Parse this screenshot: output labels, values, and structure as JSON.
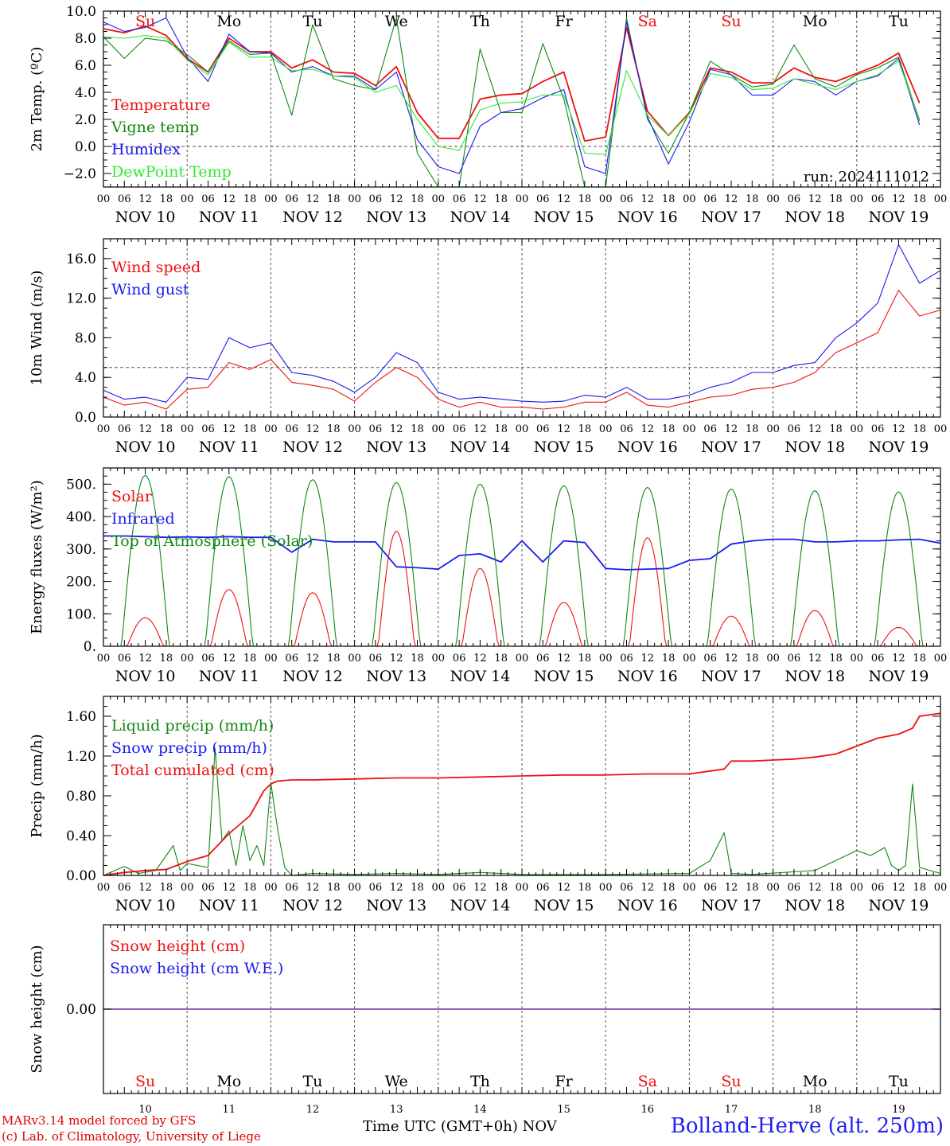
{
  "meta": {
    "run": "run: 2024111012",
    "credit_line1": "MARv3.14 model forced by GFS",
    "credit_line2": "(c) Lab. of Climatology, University of Liege",
    "xlabel": "Time UTC (GMT+0h)",
    "xunit": "NOV",
    "station": "Bolland-Herve (alt. 250m)"
  },
  "colors": {
    "red": "#ee1111",
    "green": "#118811",
    "blue": "#1a1af0",
    "lightgreen": "#33e833",
    "purple": "#7a2aa0",
    "sunday": "#ee1111"
  },
  "days": [
    "NOV 10",
    "NOV 11",
    "NOV 12",
    "NOV 13",
    "NOV 14",
    "NOV 15",
    "NOV 16",
    "NOV 17",
    "NOV 18",
    "NOV 19"
  ],
  "weekdays": [
    "Su",
    "Mo",
    "Tu",
    "We",
    "Th",
    "Fr",
    "Sa",
    "Su",
    "Mo",
    "Tu"
  ],
  "weekend_flags": [
    true,
    false,
    false,
    false,
    false,
    false,
    true,
    true,
    false,
    false
  ],
  "day_numbers": [
    "10",
    "11",
    "12",
    "13",
    "14",
    "15",
    "16",
    "17",
    "18",
    "19"
  ],
  "hour_ticks": [
    "00",
    "06",
    "12",
    "18"
  ],
  "chart_data": [
    {
      "type": "line",
      "ylabel": "2m Temp. (ºC)",
      "ylim": [
        -3,
        10
      ],
      "yticks": [
        -2,
        0,
        2,
        4,
        6,
        8,
        10
      ],
      "ytick_labels": [
        "−2.0",
        "0.0",
        "2.0",
        "4.0",
        "6.0",
        "8.0",
        "10.0"
      ],
      "ref_line": 0,
      "x_unit": "hours since NOV 10 00 UTC",
      "series": [
        {
          "name": "Temperature",
          "color": "red",
          "x": [
            0,
            6,
            12,
            18,
            24,
            30,
            36,
            42,
            48,
            54,
            60,
            66,
            72,
            78,
            84,
            90,
            96,
            102,
            108,
            114,
            120,
            126,
            132,
            138,
            144,
            150,
            156,
            162,
            168,
            174,
            180,
            186,
            192,
            198,
            204,
            210,
            216,
            222,
            228,
            234
          ],
          "y": [
            8.7,
            8.4,
            8.9,
            8.2,
            6.5,
            5.5,
            8.0,
            7.0,
            7.0,
            5.8,
            6.4,
            5.5,
            5.4,
            4.5,
            5.9,
            2.5,
            0.6,
            0.6,
            3.5,
            3.8,
            3.9,
            4.8,
            5.5,
            0.4,
            0.7,
            8.8,
            2.6,
            0.8,
            2.5,
            5.8,
            5.5,
            4.7,
            4.7,
            5.8,
            5.1,
            4.8,
            5.4,
            6.0,
            6.9,
            3.2
          ]
        },
        {
          "name": "Vigne temp",
          "color": "green",
          "x": [
            0,
            6,
            12,
            18,
            24,
            30,
            36,
            42,
            48,
            54,
            60,
            66,
            72,
            78,
            84,
            90,
            96,
            102,
            108,
            114,
            120,
            126,
            132,
            138,
            144,
            150,
            156,
            162,
            168,
            174,
            180,
            186,
            192,
            198,
            204,
            210,
            216,
            222,
            228,
            234
          ],
          "y": [
            8.1,
            6.5,
            8.0,
            7.8,
            6.8,
            5.5,
            7.8,
            6.8,
            6.9,
            2.3,
            9.0,
            5.0,
            4.5,
            4.2,
            9.5,
            -0.5,
            -3.0,
            -3.0,
            7.2,
            2.5,
            2.5,
            7.6,
            3.5,
            -3.0,
            -3.0,
            9.5,
            2.0,
            -0.5,
            2.5,
            6.3,
            5.3,
            4.4,
            4.6,
            7.5,
            5.0,
            4.4,
            5.3,
            5.8,
            6.6,
            1.9
          ]
        },
        {
          "name": "Humidex",
          "color": "blue",
          "x": [
            0,
            6,
            12,
            18,
            24,
            30,
            36,
            42,
            48,
            54,
            60,
            66,
            72,
            78,
            84,
            90,
            96,
            102,
            108,
            114,
            120,
            126,
            132,
            138,
            144,
            150,
            156,
            162,
            168,
            174,
            180,
            186,
            192,
            198,
            204,
            210,
            216,
            222,
            228,
            234
          ],
          "y": [
            9.2,
            8.5,
            8.8,
            9.5,
            6.6,
            4.8,
            8.3,
            7.0,
            6.9,
            5.5,
            5.9,
            5.2,
            5.2,
            4.2,
            5.5,
            0.5,
            -1.5,
            -2.0,
            1.5,
            2.5,
            2.8,
            3.6,
            4.2,
            -1.5,
            -2.0,
            9.2,
            2.2,
            -1.3,
            1.8,
            5.7,
            5.3,
            3.8,
            3.8,
            5.0,
            4.8,
            3.8,
            4.8,
            5.2,
            6.5,
            1.6
          ]
        },
        {
          "name": "DewPoint Temp",
          "color": "lightgreen",
          "x": [
            0,
            6,
            12,
            18,
            24,
            30,
            36,
            42,
            48,
            54,
            60,
            66,
            72,
            78,
            84,
            90,
            96,
            102,
            108,
            114,
            120,
            126,
            132,
            138,
            144,
            150,
            156,
            162,
            168,
            174,
            180,
            186,
            192,
            198,
            204,
            210,
            216,
            222,
            228,
            234
          ],
          "y": [
            8.1,
            8.0,
            8.2,
            8.0,
            6.4,
            5.3,
            7.7,
            6.6,
            6.6,
            5.6,
            5.7,
            5.2,
            5.1,
            4.0,
            4.5,
            2.0,
            0.0,
            -0.3,
            2.7,
            3.2,
            3.3,
            3.8,
            3.8,
            -0.5,
            -0.6,
            5.6,
            2.3,
            0.8,
            2.4,
            5.4,
            5.1,
            4.2,
            4.3,
            5.0,
            4.6,
            4.2,
            4.8,
            5.3,
            6.3,
            2.0
          ]
        }
      ]
    },
    {
      "type": "line",
      "ylabel": "10m Wind (m/s)",
      "ylim": [
        0,
        18
      ],
      "yticks": [
        0,
        4,
        8,
        12,
        16
      ],
      "ytick_labels": [
        "0.0",
        "4.0",
        "8.0",
        "12.0",
        "16.0"
      ],
      "ref_line": 5,
      "x_unit": "hours since NOV 10 00 UTC",
      "series": [
        {
          "name": "Wind speed",
          "color": "red",
          "x": [
            0,
            6,
            12,
            18,
            24,
            30,
            36,
            42,
            48,
            54,
            60,
            66,
            72,
            78,
            84,
            90,
            96,
            102,
            108,
            114,
            120,
            126,
            132,
            138,
            144,
            150,
            156,
            162,
            168,
            174,
            180,
            186,
            192,
            198,
            204,
            210,
            216,
            222,
            228,
            234,
            240
          ],
          "y": [
            2.0,
            1.2,
            1.5,
            0.8,
            2.8,
            3.0,
            5.5,
            4.8,
            5.8,
            3.5,
            3.2,
            2.8,
            1.6,
            3.5,
            5.0,
            4.0,
            1.8,
            1.0,
            1.5,
            1.0,
            1.0,
            0.8,
            1.0,
            1.5,
            1.5,
            2.5,
            1.2,
            1.0,
            1.5,
            2.0,
            2.2,
            2.8,
            3.0,
            3.5,
            4.5,
            6.5,
            7.5,
            8.5,
            12.8,
            10.2,
            10.8
          ]
        },
        {
          "name": "Wind gust",
          "color": "blue",
          "x": [
            0,
            6,
            12,
            18,
            24,
            30,
            36,
            42,
            48,
            54,
            60,
            66,
            72,
            78,
            84,
            90,
            96,
            102,
            108,
            114,
            120,
            126,
            132,
            138,
            144,
            150,
            156,
            162,
            168,
            174,
            180,
            186,
            192,
            198,
            204,
            210,
            216,
            222,
            228,
            234,
            240
          ],
          "y": [
            2.7,
            1.8,
            2.0,
            1.5,
            4.0,
            3.8,
            8.0,
            7.0,
            7.5,
            4.5,
            4.2,
            3.6,
            2.5,
            4.0,
            6.5,
            5.5,
            2.5,
            1.8,
            2.0,
            1.8,
            1.6,
            1.5,
            1.6,
            2.2,
            2.0,
            3.0,
            1.8,
            1.8,
            2.2,
            3.0,
            3.5,
            4.5,
            4.5,
            5.2,
            5.5,
            8.0,
            9.5,
            11.5,
            17.4,
            13.5,
            14.8
          ]
        }
      ]
    },
    {
      "type": "line",
      "ylabel": "Energy fluxes (W/m²)",
      "ylim": [
        0,
        550
      ],
      "yticks": [
        0,
        100,
        200,
        300,
        400,
        500
      ],
      "ytick_labels": [
        "0.",
        "100.",
        "200.",
        "300.",
        "400.",
        "500."
      ],
      "x_unit": "hours since NOV 10 00 UTC",
      "series": [
        {
          "name": "Solar",
          "color": "red",
          "peak_hour": 12,
          "daily_peaks": [
            88,
            175,
            165,
            355,
            240,
            135,
            335,
            93,
            110,
            58
          ]
        },
        {
          "name": "Infrared",
          "color": "blue",
          "x": [
            0,
            6,
            12,
            18,
            24,
            30,
            36,
            42,
            48,
            54,
            60,
            66,
            72,
            78,
            84,
            90,
            96,
            102,
            108,
            114,
            120,
            126,
            132,
            138,
            144,
            150,
            156,
            162,
            168,
            174,
            180,
            186,
            192,
            198,
            204,
            210,
            216,
            222,
            228,
            234,
            240
          ],
          "y": [
            340,
            340,
            338,
            336,
            337,
            336,
            338,
            336,
            336,
            290,
            330,
            322,
            322,
            322,
            245,
            242,
            238,
            280,
            285,
            260,
            325,
            260,
            325,
            320,
            240,
            236,
            238,
            240,
            265,
            270,
            315,
            325,
            330,
            330,
            322,
            322,
            325,
            325,
            328,
            330,
            318
          ]
        },
        {
          "name": "Top of Atmosphere (Solar)",
          "color": "green",
          "peak_hour": 12,
          "daily_peaks": [
            527,
            523,
            514,
            505,
            500,
            495,
            490,
            485,
            480,
            476
          ]
        }
      ]
    },
    {
      "type": "line",
      "ylabel": "Precip (mm/h)",
      "ylim": [
        0,
        1.8
      ],
      "yticks": [
        0,
        0.4,
        0.8,
        1.2,
        1.6
      ],
      "ytick_labels": [
        "0.00",
        "0.40",
        "0.80",
        "1.20",
        "1.60"
      ],
      "x_unit": "hours since NOV 10 00 UTC",
      "series": [
        {
          "name": "Liquid precip (mm/h)",
          "color": "green",
          "x": [
            0,
            6,
            10,
            15,
            20,
            22,
            24,
            30,
            32,
            34,
            36,
            38,
            40,
            42,
            44,
            46,
            48,
            50,
            52,
            54,
            60,
            72,
            84,
            96,
            108,
            120,
            144,
            168,
            174,
            178,
            180,
            186,
            204,
            216,
            220,
            224,
            226,
            228,
            230,
            232,
            234,
            240
          ],
          "y": [
            0,
            0.09,
            0.02,
            0.05,
            0.3,
            0.05,
            0.12,
            0.08,
            1.28,
            0.35,
            0.45,
            0.1,
            0.5,
            0.15,
            0.3,
            0.1,
            0.93,
            0.45,
            0.08,
            0,
            0.02,
            0.01,
            0.02,
            0.01,
            0.03,
            0.01,
            0.01,
            0.02,
            0.15,
            0.43,
            0.02,
            0.01,
            0.05,
            0.25,
            0.2,
            0.28,
            0.1,
            0.05,
            0.1,
            0.92,
            0.08,
            0.02
          ]
        },
        {
          "name": "Snow precip (mm/h)",
          "color": "blue",
          "x": [
            0,
            240
          ],
          "y": [
            0,
            0
          ]
        },
        {
          "name": "Total cumulated (cm)",
          "color": "red",
          "x": [
            0,
            6,
            12,
            18,
            24,
            30,
            36,
            42,
            46,
            48,
            50,
            54,
            60,
            72,
            84,
            96,
            108,
            120,
            132,
            144,
            156,
            168,
            174,
            178,
            180,
            186,
            192,
            198,
            204,
            210,
            216,
            222,
            228,
            232,
            234,
            240
          ],
          "y": [
            0,
            0.03,
            0.05,
            0.06,
            0.14,
            0.2,
            0.42,
            0.6,
            0.85,
            0.92,
            0.95,
            0.96,
            0.96,
            0.97,
            0.98,
            0.98,
            0.99,
            1.0,
            1.01,
            1.01,
            1.02,
            1.02,
            1.05,
            1.07,
            1.15,
            1.15,
            1.16,
            1.17,
            1.19,
            1.22,
            1.3,
            1.38,
            1.42,
            1.48,
            1.6,
            1.63
          ]
        }
      ]
    },
    {
      "type": "line",
      "ylabel": "Snow height (cm)",
      "yticks": [
        0
      ],
      "ytick_labels": [
        "0.00"
      ],
      "x_unit": "hours since NOV 10 00 UTC",
      "series": [
        {
          "name": "Snow height (cm)",
          "color": "red",
          "x": [
            0,
            240
          ],
          "y": [
            0,
            0
          ]
        },
        {
          "name": "Snow height (cm W.E.)",
          "color": "blue",
          "x": [
            0,
            240
          ],
          "y": [
            0,
            0
          ]
        }
      ]
    }
  ]
}
